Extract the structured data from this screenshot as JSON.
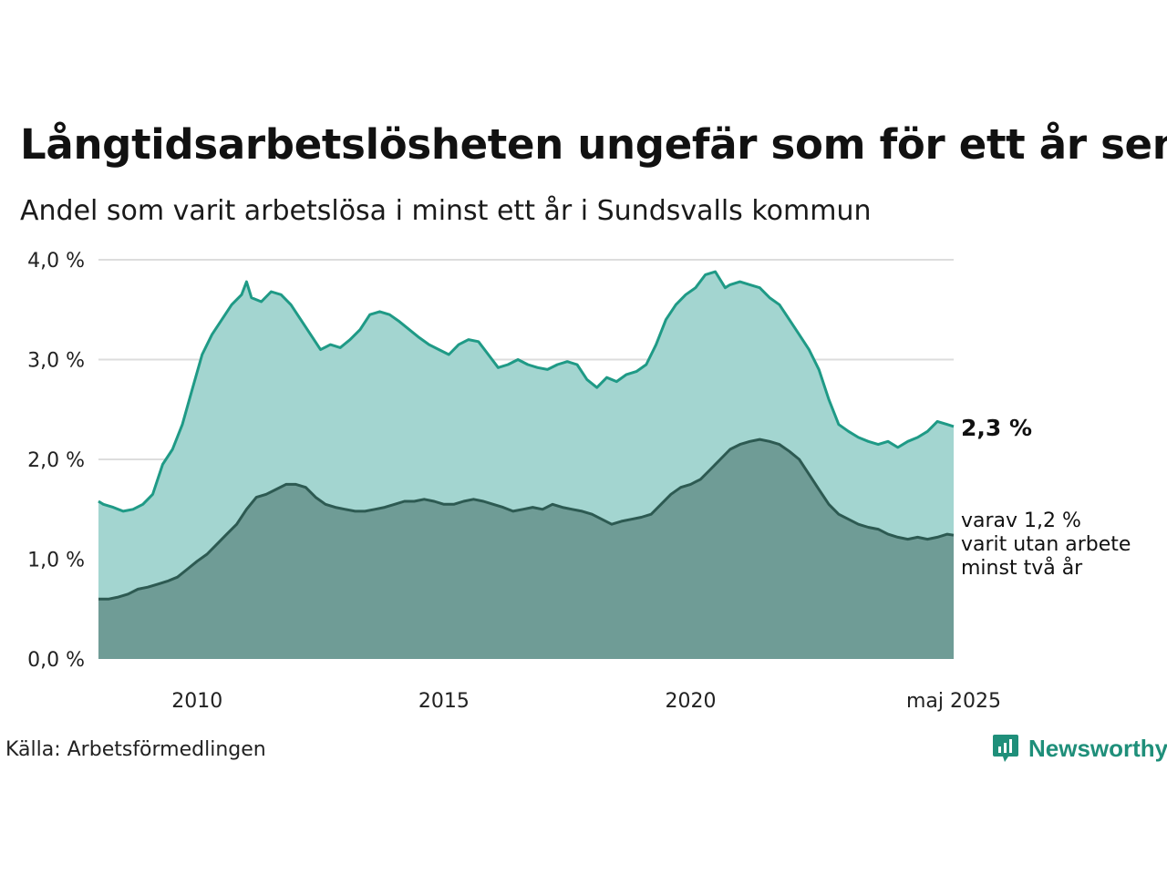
{
  "title": "Långtidsarbetslösheten ungefär som för ett år sen",
  "subtitle": "Andel som varit arbetslösa i minst ett år i Sundsvalls kommun",
  "source": "Källa: Arbetsförmedlingen",
  "brand": "Newsworthy",
  "end_label": "2,3 %",
  "sub_label_lines": [
    "varav 1,2 %",
    "varit utan arbete",
    "minst två år"
  ],
  "colors": {
    "total_line": "#1f9a86",
    "total_fill": "#a3d5d0",
    "longterm_line": "#2d5a52",
    "longterm_fill": "#6f9c96",
    "grid": "#dddddd",
    "brand": "#1f8f7a"
  },
  "chart_data": {
    "type": "area",
    "x_unit": "year",
    "x_tick_labels": [
      {
        "x": 2010,
        "label": "2010"
      },
      {
        "x": 2015,
        "label": "2015"
      },
      {
        "x": 2020,
        "label": "2020"
      },
      {
        "x": 2025.33,
        "label": "maj 2025"
      }
    ],
    "y_tick_labels": [
      "0,0 %",
      "1,0 %",
      "2,0 %",
      "3,0 %",
      "4,0 %"
    ],
    "ylim": [
      0,
      4
    ],
    "xlim": [
      2008.0,
      2025.33
    ],
    "grid": true,
    "series": [
      {
        "key": "total",
        "x": [
          2008.0,
          2008.1,
          2008.3,
          2008.5,
          2008.7,
          2008.9,
          2009.1,
          2009.3,
          2009.5,
          2009.7,
          2009.9,
          2010.1,
          2010.3,
          2010.5,
          2010.7,
          2010.9,
          2011.0,
          2011.1,
          2011.3,
          2011.5,
          2011.7,
          2011.9,
          2012.1,
          2012.3,
          2012.5,
          2012.7,
          2012.9,
          2013.1,
          2013.3,
          2013.5,
          2013.7,
          2013.9,
          2014.1,
          2014.3,
          2014.5,
          2014.7,
          2014.9,
          2015.1,
          2015.3,
          2015.5,
          2015.7,
          2015.9,
          2016.1,
          2016.3,
          2016.5,
          2016.7,
          2016.9,
          2017.1,
          2017.3,
          2017.5,
          2017.7,
          2017.9,
          2018.1,
          2018.3,
          2018.5,
          2018.7,
          2018.9,
          2019.1,
          2019.3,
          2019.5,
          2019.7,
          2019.9,
          2020.1,
          2020.3,
          2020.5,
          2020.7,
          2020.8,
          2021.0,
          2021.2,
          2021.4,
          2021.6,
          2021.8,
          2022.0,
          2022.2,
          2022.4,
          2022.6,
          2022.8,
          2023.0,
          2023.2,
          2023.4,
          2023.6,
          2023.8,
          2024.0,
          2024.2,
          2024.4,
          2024.6,
          2024.8,
          2025.0,
          2025.2,
          2025.33
        ],
        "values": [
          1.58,
          1.55,
          1.52,
          1.48,
          1.5,
          1.55,
          1.65,
          1.95,
          2.1,
          2.35,
          2.7,
          3.05,
          3.25,
          3.4,
          3.55,
          3.65,
          3.78,
          3.62,
          3.58,
          3.68,
          3.65,
          3.55,
          3.4,
          3.25,
          3.1,
          3.15,
          3.12,
          3.2,
          3.3,
          3.45,
          3.48,
          3.45,
          3.38,
          3.3,
          3.22,
          3.15,
          3.1,
          3.05,
          3.15,
          3.2,
          3.18,
          3.05,
          2.92,
          2.95,
          3.0,
          2.95,
          2.92,
          2.9,
          2.95,
          2.98,
          2.95,
          2.8,
          2.72,
          2.82,
          2.78,
          2.85,
          2.88,
          2.95,
          3.15,
          3.4,
          3.55,
          3.65,
          3.72,
          3.85,
          3.88,
          3.72,
          3.75,
          3.78,
          3.75,
          3.72,
          3.62,
          3.55,
          3.4,
          3.25,
          3.1,
          2.9,
          2.6,
          2.35,
          2.28,
          2.22,
          2.18,
          2.15,
          2.18,
          2.12,
          2.18,
          2.22,
          2.28,
          2.38,
          2.35,
          2.33
        ]
      },
      {
        "key": "longterm",
        "x": [
          2008.0,
          2008.2,
          2008.4,
          2008.6,
          2008.8,
          2009.0,
          2009.2,
          2009.4,
          2009.6,
          2009.8,
          2010.0,
          2010.2,
          2010.4,
          2010.6,
          2010.8,
          2011.0,
          2011.2,
          2011.4,
          2011.6,
          2011.8,
          2012.0,
          2012.2,
          2012.4,
          2012.6,
          2012.8,
          2013.0,
          2013.2,
          2013.4,
          2013.6,
          2013.8,
          2014.0,
          2014.2,
          2014.4,
          2014.6,
          2014.8,
          2015.0,
          2015.2,
          2015.4,
          2015.6,
          2015.8,
          2016.0,
          2016.2,
          2016.4,
          2016.6,
          2016.8,
          2017.0,
          2017.2,
          2017.4,
          2017.6,
          2017.8,
          2018.0,
          2018.2,
          2018.4,
          2018.6,
          2018.8,
          2019.0,
          2019.2,
          2019.4,
          2019.6,
          2019.8,
          2020.0,
          2020.2,
          2020.4,
          2020.6,
          2020.8,
          2021.0,
          2021.2,
          2021.4,
          2021.6,
          2021.8,
          2022.0,
          2022.2,
          2022.4,
          2022.6,
          2022.8,
          2023.0,
          2023.2,
          2023.4,
          2023.6,
          2023.8,
          2024.0,
          2024.2,
          2024.4,
          2024.6,
          2024.8,
          2025.0,
          2025.2,
          2025.33
        ],
        "values": [
          0.6,
          0.6,
          0.62,
          0.65,
          0.7,
          0.72,
          0.75,
          0.78,
          0.82,
          0.9,
          0.98,
          1.05,
          1.15,
          1.25,
          1.35,
          1.5,
          1.62,
          1.65,
          1.7,
          1.75,
          1.75,
          1.72,
          1.62,
          1.55,
          1.52,
          1.5,
          1.48,
          1.48,
          1.5,
          1.52,
          1.55,
          1.58,
          1.58,
          1.6,
          1.58,
          1.55,
          1.55,
          1.58,
          1.6,
          1.58,
          1.55,
          1.52,
          1.48,
          1.5,
          1.52,
          1.5,
          1.55,
          1.52,
          1.5,
          1.48,
          1.45,
          1.4,
          1.35,
          1.38,
          1.4,
          1.42,
          1.45,
          1.55,
          1.65,
          1.72,
          1.75,
          1.8,
          1.9,
          2.0,
          2.1,
          2.15,
          2.18,
          2.2,
          2.18,
          2.15,
          2.08,
          2.0,
          1.85,
          1.7,
          1.55,
          1.45,
          1.4,
          1.35,
          1.32,
          1.3,
          1.25,
          1.22,
          1.2,
          1.22,
          1.2,
          1.22,
          1.25,
          1.24
        ]
      }
    ]
  }
}
